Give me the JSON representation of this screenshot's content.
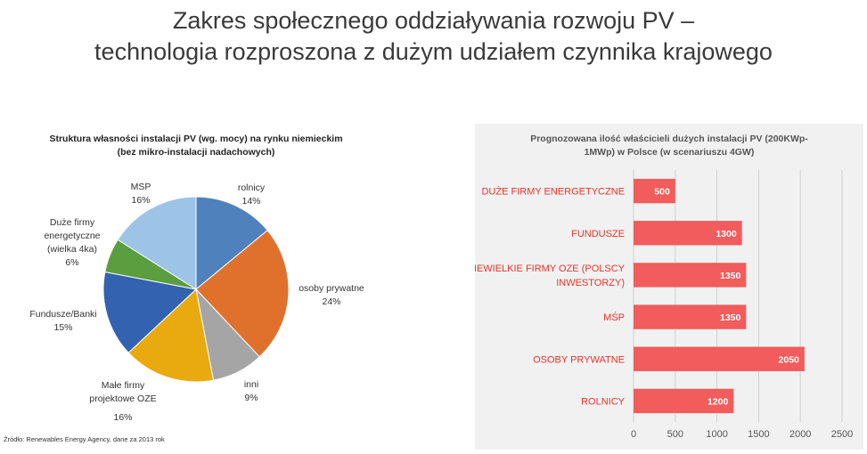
{
  "slide": {
    "title_line1": "Zakres społecznego oddziaływania rozwoju PV –",
    "title_line2": "technologia rozproszona z dużym udziałem czynnika krajowego",
    "source": "Źródło: Renewables Energy Agency, dane za 2013 rok"
  },
  "chart_data": [
    {
      "type": "pie",
      "title_line1": "Struktura własności instalacji PV (wg. mocy) na rynku niemieckim",
      "title_line2": "(bez mikro-instalacji nadachowych)",
      "slices": [
        {
          "name": "rolnicy",
          "value": 14,
          "pct_label": "14%",
          "label_lines": [
            "rolnicy",
            "14%"
          ],
          "color": "#4f81bd"
        },
        {
          "name": "osoby prywatne",
          "value": 24,
          "pct_label": "24%",
          "label_lines": [
            "osoby prywatne",
            "24%"
          ],
          "color": "#e0712c"
        },
        {
          "name": "inni",
          "value": 9,
          "pct_label": "9%",
          "label_lines": [
            "inni",
            "9%"
          ],
          "color": "#a5a5a5"
        },
        {
          "name": "Małe firmy projektowe OZE",
          "value": 16,
          "pct_label": "16%",
          "label_lines": [
            "Małe firmy",
            "projektowe OZE",
            "16%"
          ],
          "color": "#e8aa0e"
        },
        {
          "name": "Fundusze/Banki",
          "value": 15,
          "pct_label": "15%",
          "label_lines": [
            "Fundusze/Banki",
            "15%"
          ],
          "color": "#3362b0"
        },
        {
          "name": "Duże firmy energetyczne (wielka 4ka)",
          "value": 6,
          "pct_label": "6%",
          "label_lines": [
            "Duże firmy",
            "energetyczne",
            "(wielka 4ka)",
            "6%"
          ],
          "color": "#5a9e3f"
        },
        {
          "name": "MSP",
          "value": 16,
          "pct_label": "16%",
          "label_lines": [
            "MSP",
            "16%"
          ],
          "color": "#9dc3e6"
        }
      ]
    },
    {
      "type": "bar",
      "orientation": "horizontal",
      "title_line1": "Prognozowana ilość właścicieli dużych instalacji PV (200KWp-",
      "title_line2": "1MWp) w Polsce (w scenariuszu 4GW)",
      "categories": [
        {
          "label_lines": [
            "DUŻE FIRMY ENERGETYCZNE"
          ]
        },
        {
          "label_lines": [
            "FUNDUSZE"
          ]
        },
        {
          "label_lines": [
            "NIEWIELKIE FIRMY OZE (POLSCY",
            "INWESTORZY)"
          ]
        },
        {
          "label_lines": [
            "MŚP"
          ]
        },
        {
          "label_lines": [
            "OSOBY PRYWATNE"
          ]
        },
        {
          "label_lines": [
            "ROLNICY"
          ]
        }
      ],
      "values": [
        500,
        1300,
        1350,
        1350,
        2050,
        1200
      ],
      "value_labels": [
        "500",
        "1300",
        "1350",
        "1350",
        "2050",
        "1200"
      ],
      "xlim": [
        0,
        2500
      ],
      "ticks": [
        0,
        500,
        1000,
        1500,
        2000,
        2500
      ],
      "tick_labels": [
        "0",
        "500",
        "1000",
        "1500",
        "2000",
        "2500"
      ],
      "grid": true,
      "bar_color": "#f25c5c"
    }
  ]
}
